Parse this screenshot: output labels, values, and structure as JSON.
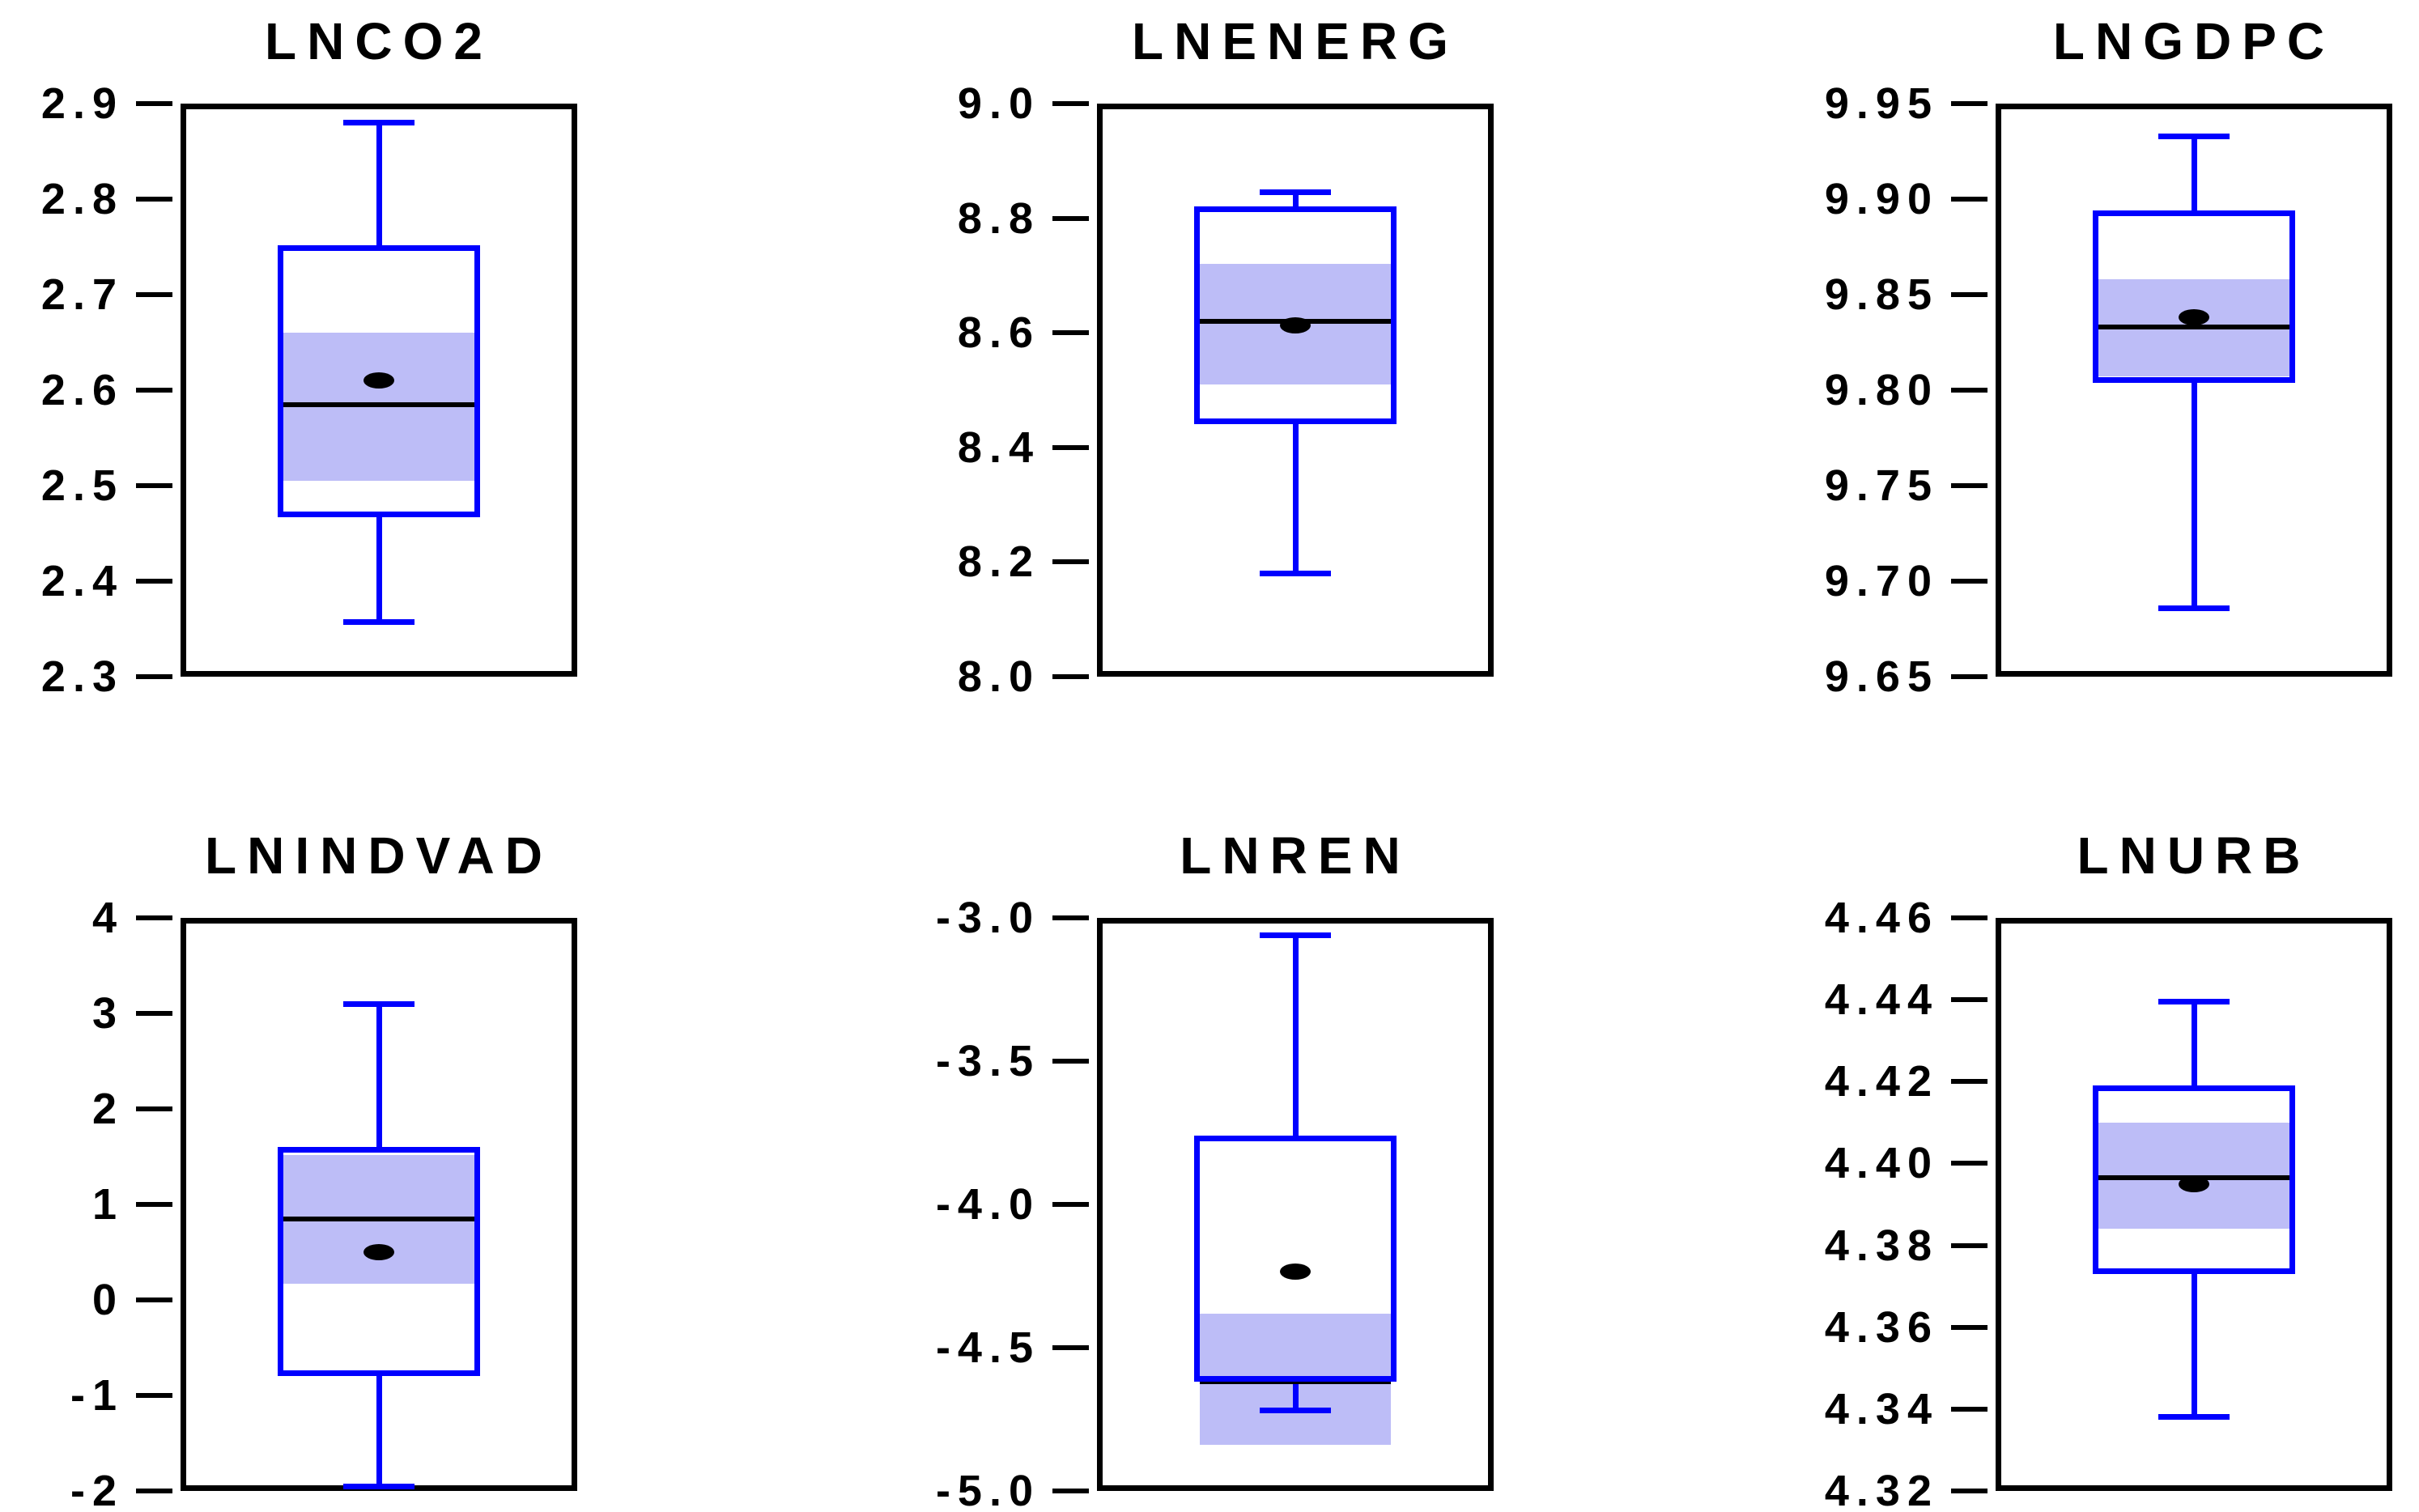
{
  "figure": {
    "background": "#ffffff",
    "rows": 2,
    "cols": 3,
    "description": "Grid of six statistical boxplots with shaded median confidence bands and mean markers"
  },
  "styles": {
    "box_color": "#0000ff",
    "whisker_color": "#0000ff",
    "median_ci_fill": "#bdbdf7",
    "median_line_color": "#000000",
    "mean_marker_color": "#000000",
    "frame_color": "#000000",
    "text_color": "#000000"
  },
  "chart_data": [
    {
      "type": "box",
      "title": "LNCO2",
      "ylim": [
        2.3,
        2.9
      ],
      "tick_labels": [
        "2.9",
        "2.8",
        "2.7",
        "2.6",
        "2.5",
        "2.4",
        "2.3"
      ],
      "tick_values": [
        2.9,
        2.8,
        2.7,
        2.6,
        2.5,
        2.4,
        2.3
      ],
      "grid": false,
      "stats": {
        "whisker_low": 2.357,
        "q1": 2.467,
        "median_ci_low": 2.505,
        "median": 2.585,
        "mean": 2.61,
        "median_ci_high": 2.66,
        "q3": 2.752,
        "whisker_high": 2.88
      }
    },
    {
      "type": "box",
      "title": "LNENERG",
      "ylim": [
        8.0,
        9.0
      ],
      "tick_labels": [
        "9.0",
        "8.8",
        "8.6",
        "8.4",
        "8.2",
        "8.0"
      ],
      "tick_values": [
        9.0,
        8.8,
        8.6,
        8.4,
        8.2,
        8.0
      ],
      "grid": false,
      "stats": {
        "whisker_low": 8.18,
        "q1": 8.44,
        "median_ci_low": 8.51,
        "mean": 8.613,
        "median": 8.62,
        "median_ci_high": 8.72,
        "q3": 8.82,
        "whisker_high": 8.845
      }
    },
    {
      "type": "box",
      "title": "LNGDPC",
      "ylim": [
        9.65,
        9.95
      ],
      "tick_labels": [
        "9.95",
        "9.90",
        "9.85",
        "9.80",
        "9.75",
        "9.70",
        "9.65"
      ],
      "tick_values": [
        9.95,
        9.9,
        9.85,
        9.8,
        9.75,
        9.7,
        9.65
      ],
      "grid": false,
      "stats": {
        "whisker_low": 9.686,
        "q1": 9.804,
        "median_ci_low": 9.807,
        "median": 9.833,
        "mean": 9.838,
        "median_ci_high": 9.858,
        "q3": 9.894,
        "whisker_high": 9.933
      }
    },
    {
      "type": "box",
      "title": "LNINDVAD",
      "ylim": [
        -2,
        4
      ],
      "tick_labels": [
        "4",
        "3",
        "2",
        "1",
        "0",
        "-1",
        "-2"
      ],
      "tick_values": [
        4,
        3,
        2,
        1,
        0,
        -1,
        -2
      ],
      "grid": false,
      "stats": {
        "whisker_low": -1.95,
        "q1": -0.8,
        "median_ci_low": 0.17,
        "mean": 0.5,
        "median": 0.85,
        "median_ci_high": 1.52,
        "q3": 1.6,
        "whisker_high": 3.1
      }
    },
    {
      "type": "box",
      "title": "LNREN",
      "ylim": [
        -5.0,
        -3.0
      ],
      "tick_labels": [
        "-3.0",
        "-3.5",
        "-4.0",
        "-4.5",
        "-5.0"
      ],
      "tick_values": [
        -3.0,
        -3.5,
        -4.0,
        -4.5,
        -5.0
      ],
      "grid": false,
      "stats": {
        "whisker_low": -4.72,
        "median_ci_low": -4.84,
        "q1": -4.62,
        "median": -4.62,
        "mean": -4.235,
        "median_ci_high": -4.38,
        "q3": -3.76,
        "whisker_high": -3.06
      }
    },
    {
      "type": "box",
      "title": "LNURB",
      "ylim": [
        4.32,
        4.46
      ],
      "tick_labels": [
        "4.46",
        "4.44",
        "4.42",
        "4.40",
        "4.38",
        "4.36",
        "4.34",
        "4.32"
      ],
      "tick_values": [
        4.46,
        4.44,
        4.42,
        4.4,
        4.38,
        4.36,
        4.34,
        4.32
      ],
      "grid": false,
      "stats": {
        "whisker_low": 4.338,
        "q1": 4.373,
        "median_ci_low": 4.384,
        "mean": 4.395,
        "median": 4.3965,
        "median_ci_high": 4.41,
        "q3": 4.419,
        "whisker_high": 4.4395
      }
    }
  ]
}
